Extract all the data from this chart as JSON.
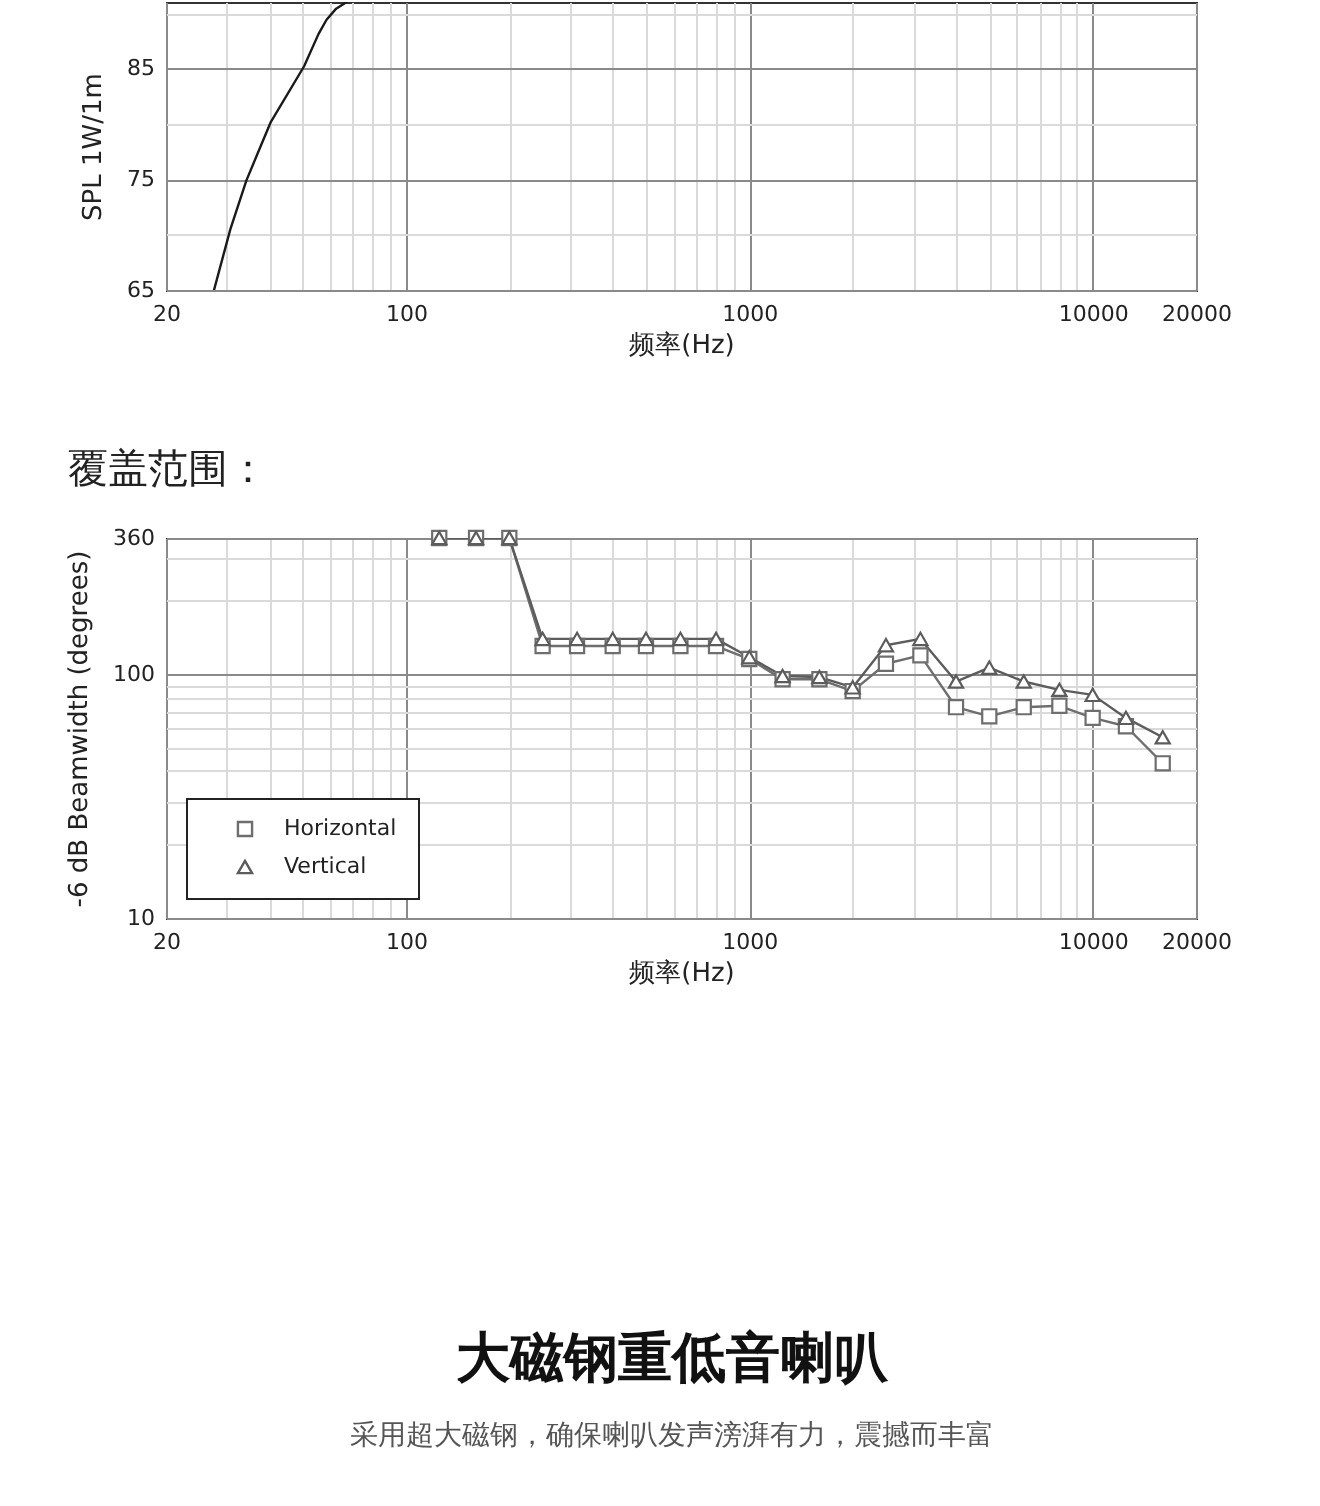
{
  "chart_data": [
    {
      "type": "line",
      "xlabel": "频率(Hz)",
      "ylabel": "SPL 1W/1m",
      "log": "x",
      "grid": true,
      "xlim": [
        20,
        20000
      ],
      "ylim": [
        65,
        91
      ],
      "xticks": [
        20,
        {
          "value": 30,
          "label": null
        },
        {
          "value": 40,
          "label": null
        },
        {
          "value": 50,
          "label": null
        },
        {
          "value": 60,
          "label": null
        },
        {
          "value": 70,
          "label": null
        },
        {
          "value": 80,
          "label": null
        },
        {
          "value": 90,
          "label": null
        },
        100,
        {
          "value": 200,
          "label": null
        },
        {
          "value": 300,
          "label": null
        },
        {
          "value": 400,
          "label": null
        },
        {
          "value": 500,
          "label": null
        },
        {
          "value": 600,
          "label": null
        },
        {
          "value": 700,
          "label": null
        },
        {
          "value": 800,
          "label": null
        },
        {
          "value": 900,
          "label": null
        },
        1000,
        {
          "value": 2000,
          "label": null
        },
        {
          "value": 3000,
          "label": null
        },
        {
          "value": 4000,
          "label": null
        },
        {
          "value": 5000,
          "label": null
        },
        {
          "value": 6000,
          "label": null
        },
        {
          "value": 7000,
          "label": null
        },
        {
          "value": 8000,
          "label": null
        },
        {
          "value": 9000,
          "label": null
        },
        10000,
        20000
      ],
      "yticks": [
        65,
        {
          "value": 70,
          "label": null
        },
        75,
        {
          "value": 80,
          "label": null
        },
        85,
        {
          "value": 90,
          "label": null
        }
      ],
      "x": [
        27.6,
        30.8,
        34.3,
        40.3,
        50.5,
        55.6,
        58.7,
        62.6,
        67.2
      ],
      "series": [
        {
          "color": "#1a1a1a",
          "values": [
            65,
            70.5,
            74.9,
            80.1,
            85.2,
            88.1,
            89.4,
            90.4,
            91
          ]
        }
      ]
    },
    {
      "type": "line",
      "title": "覆盖范围：",
      "xlabel": "频率(Hz)",
      "ylabel": "-6 dB Beamwidth (degrees)",
      "log": "xy",
      "grid": true,
      "legend": "bottom left",
      "xlim": [
        20,
        20000
      ],
      "ylim": [
        10,
        360
      ],
      "xticks": [
        20,
        {
          "value": 30,
          "label": null
        },
        {
          "value": 40,
          "label": null
        },
        {
          "value": 50,
          "label": null
        },
        {
          "value": 60,
          "label": null
        },
        {
          "value": 70,
          "label": null
        },
        {
          "value": 80,
          "label": null
        },
        {
          "value": 90,
          "label": null
        },
        100,
        {
          "value": 200,
          "label": null
        },
        {
          "value": 300,
          "label": null
        },
        {
          "value": 400,
          "label": null
        },
        {
          "value": 500,
          "label": null
        },
        {
          "value": 600,
          "label": null
        },
        {
          "value": 700,
          "label": null
        },
        {
          "value": 800,
          "label": null
        },
        {
          "value": 900,
          "label": null
        },
        1000,
        {
          "value": 2000,
          "label": null
        },
        {
          "value": 3000,
          "label": null
        },
        {
          "value": 4000,
          "label": null
        },
        {
          "value": 5000,
          "label": null
        },
        {
          "value": 6000,
          "label": null
        },
        {
          "value": 7000,
          "label": null
        },
        {
          "value": 8000,
          "label": null
        },
        {
          "value": 9000,
          "label": null
        },
        10000,
        20000
      ],
      "yticks": [
        10,
        {
          "value": 20,
          "label": null
        },
        {
          "value": 30,
          "label": null
        },
        {
          "value": 40,
          "label": null
        },
        {
          "value": 50,
          "label": null
        },
        {
          "value": 60,
          "label": null
        },
        {
          "value": 70,
          "label": null
        },
        {
          "value": 80,
          "label": null
        },
        {
          "value": 90,
          "label": null
        },
        100,
        {
          "value": 200,
          "label": null
        },
        {
          "value": 300,
          "label": null
        },
        360
      ],
      "x": [
        125,
        160,
        200,
        250,
        315,
        400,
        500,
        630,
        800,
        1000,
        1250,
        1600,
        2000,
        2500,
        3150,
        4000,
        5000,
        6300,
        8000,
        10000,
        12500,
        16000
      ],
      "series": [
        {
          "name": "Horizontal",
          "color": "#6e6e6e",
          "marker": "square",
          "values": [
            360,
            360,
            360,
            130,
            130,
            130,
            130,
            130,
            130,
            115,
            95,
            95,
            85,
            110,
            119,
            73,
            67,
            73,
            74,
            66,
            61,
            43
          ]
        },
        {
          "name": "Vertical",
          "color": "#5c5c5c",
          "marker": "triangle",
          "values": [
            360,
            360,
            360,
            139,
            139,
            139,
            139,
            139,
            139,
            117,
            98,
            97,
            88,
            131,
            139,
            93,
            106,
            93,
            86,
            82,
            66,
            55
          ]
        }
      ]
    },
    {
      "type": "other",
      "title": "大磁钢重低音喇叭",
      "subtitle": "采用超大磁钢，确保喇叭发声滂湃有力，震撼而丰富"
    }
  ]
}
